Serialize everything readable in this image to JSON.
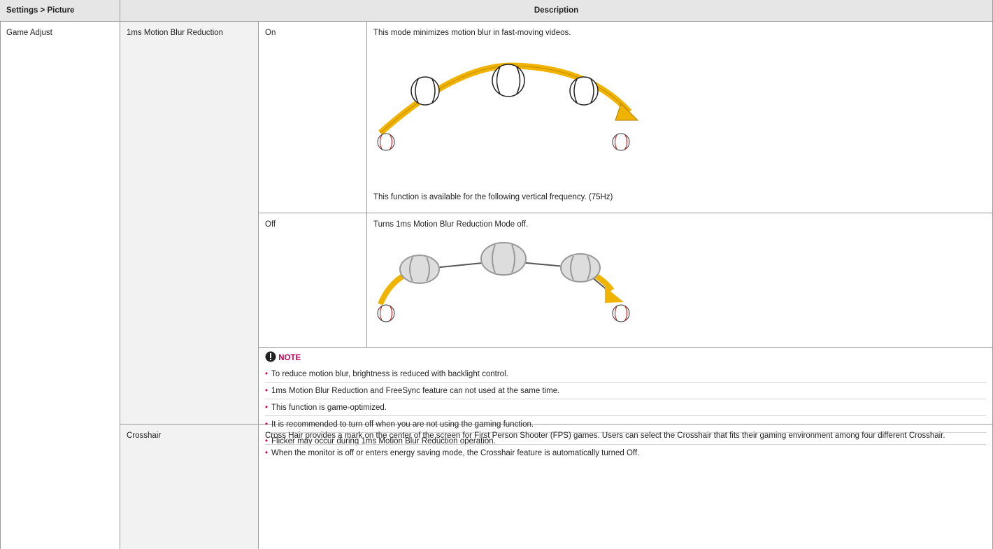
{
  "header": {
    "setting": "Settings > Picture",
    "description": "Description"
  },
  "menu": "Game Adjust",
  "items": [
    {
      "label": "1ms Motion Blur Reduction",
      "options": [
        {
          "label": "On",
          "text": "This mode minimizes motion blur in fast-moving videos.",
          "footnote": "This function is available for the following vertical frequency. (75Hz)"
        },
        {
          "label": "Off",
          "text": "Turns 1ms Motion Blur Reduction Mode off."
        }
      ],
      "note": {
        "title": "NOTE",
        "bullets": [
          "To reduce motion blur, brightness is reduced with backlight control.",
          "1ms Motion Blur Reduction and FreeSync feature can not used at the same time.",
          "This function is game-optimized.",
          "It is recommended to turn off when you are not using the gaming function.",
          "Flicker may occur during 1ms Motion Blur Reduction operation."
        ]
      }
    },
    {
      "label": "Crosshair",
      "text": "Cross Hair provides a mark on the center of the screen for First Person Shooter (FPS) games. Users can select the Crosshair that fits their gaming environment among four different Crosshair.",
      "bullets": [
        "When the monitor is off or enters energy saving mode, the Crosshair feature is automatically turned Off."
      ]
    }
  ]
}
